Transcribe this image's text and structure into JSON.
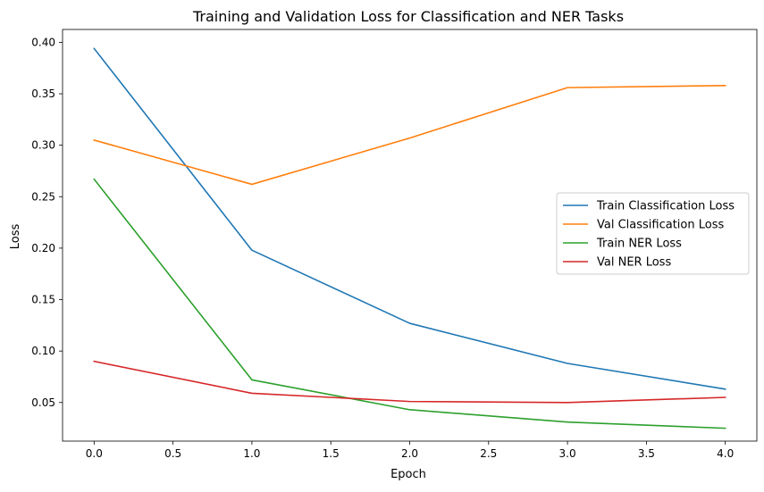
{
  "chart_data": {
    "type": "line",
    "title": "Training and Validation Loss for Classification and NER Tasks",
    "xlabel": "Epoch",
    "ylabel": "Loss",
    "x": [
      0,
      1,
      2,
      3,
      4
    ],
    "xlim": [
      -0.2,
      4.2
    ],
    "ylim": [
      0.0125,
      0.4125
    ],
    "xticks": [
      0.0,
      0.5,
      1.0,
      1.5,
      2.0,
      2.5,
      3.0,
      3.5,
      4.0
    ],
    "xtick_labels": [
      "0.0",
      "0.5",
      "1.0",
      "1.5",
      "2.0",
      "2.5",
      "3.0",
      "3.5",
      "4.0"
    ],
    "yticks": [
      0.05,
      0.1,
      0.15,
      0.2,
      0.25,
      0.3,
      0.35,
      0.4
    ],
    "ytick_labels": [
      "0.05",
      "0.10",
      "0.15",
      "0.20",
      "0.25",
      "0.30",
      "0.35",
      "0.40"
    ],
    "grid": false,
    "legend_position": "center-right",
    "series": [
      {
        "name": "Train Classification Loss",
        "color": "#1f77b4",
        "values": [
          0.394,
          0.198,
          0.127,
          0.088,
          0.063
        ]
      },
      {
        "name": "Val Classification Loss",
        "color": "#ff7f0e",
        "values": [
          0.305,
          0.262,
          0.307,
          0.356,
          0.358
        ]
      },
      {
        "name": "Train NER Loss",
        "color": "#2ca02c",
        "values": [
          0.267,
          0.072,
          0.043,
          0.031,
          0.025
        ]
      },
      {
        "name": "Val NER Loss",
        "color": "#d62728",
        "values": [
          0.09,
          0.059,
          0.051,
          0.05,
          0.055
        ]
      }
    ]
  }
}
